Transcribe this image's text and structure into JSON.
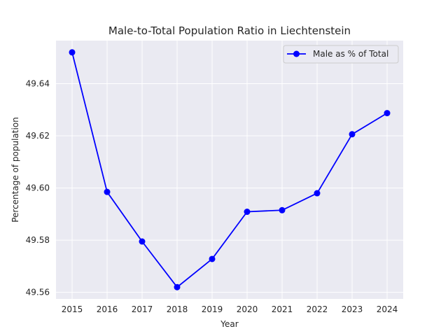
{
  "chart_data": {
    "type": "line",
    "title": "Male-to-Total Population Ratio in Liechtenstein",
    "xlabel": "Year",
    "ylabel": "Percentage of population",
    "x": [
      "2015",
      "2016",
      "2017",
      "2018",
      "2019",
      "2020",
      "2021",
      "2022",
      "2023",
      "2024"
    ],
    "series": [
      {
        "name": "Male as % of Total",
        "values": [
          49.652,
          49.5985,
          49.5795,
          49.562,
          49.5728,
          49.5909,
          49.5915,
          49.598,
          49.6206,
          49.6287
        ]
      }
    ],
    "yticks": [
      "49.56",
      "49.58",
      "49.60",
      "49.62",
      "49.64"
    ],
    "ylim": [
      49.5575,
      49.6565
    ],
    "grid": true,
    "legend_position": "top-right",
    "colors": {
      "background": "#eaeaf2",
      "grid": "#ffffff",
      "line": "#0000ff",
      "text": "#262626"
    }
  }
}
